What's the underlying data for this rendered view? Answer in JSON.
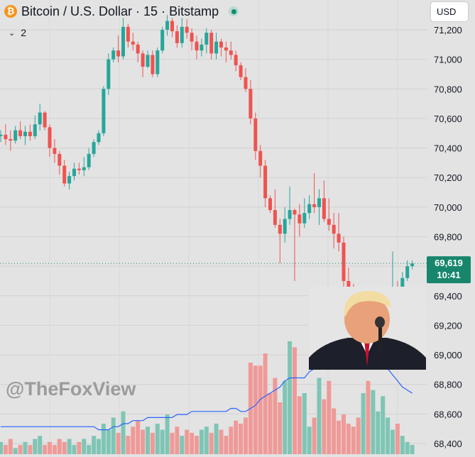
{
  "header": {
    "coin_symbol": "₿",
    "title": "Bitcoin / U.S. Dollar · 15 · Bitstamp",
    "indicator_toggle_icon": "chevron-down-icon",
    "indicator_count": "2",
    "currency": "USD"
  },
  "watermark": "@TheFoxView",
  "colors": {
    "background": "#e3e3e3",
    "up": "#26a69a",
    "down": "#ef5350",
    "volume_up": "#7fc5b5",
    "volume_down": "#ef9a98",
    "volume_ma": "#2962ff",
    "price_label": "#17866d"
  },
  "chart_data": {
    "type": "candlestick",
    "symbol": "Bitcoin / U.S. Dollar",
    "interval": "15",
    "exchange": "Bitstamp",
    "y_axis": {
      "range": [
        68300,
        71300
      ],
      "ticks": [
        "71,200",
        "71,000",
        "70,800",
        "70,600",
        "70,400",
        "70,200",
        "70,000",
        "69,800",
        "69,600",
        "69,400",
        "69,200",
        "69,000",
        "68,800",
        "68,600",
        "68,400"
      ],
      "tick_values": [
        71200,
        71000,
        70800,
        70600,
        70400,
        70200,
        70000,
        69800,
        69600,
        69400,
        69200,
        69000,
        68800,
        68600,
        68400
      ]
    },
    "current_price": {
      "value": 69619,
      "label": "69,619",
      "countdown": "10:41"
    },
    "candles": [
      [
        70480,
        70520,
        70440,
        70490
      ],
      [
        70490,
        70560,
        70420,
        70460
      ],
      [
        70460,
        70520,
        70380,
        70450
      ],
      [
        70450,
        70550,
        70430,
        70520
      ],
      [
        70520,
        70580,
        70460,
        70480
      ],
      [
        70480,
        70550,
        70420,
        70510
      ],
      [
        70510,
        70560,
        70450,
        70480
      ],
      [
        70480,
        70620,
        70460,
        70560
      ],
      [
        70560,
        70700,
        70520,
        70640
      ],
      [
        70640,
        70650,
        70520,
        70540
      ],
      [
        70540,
        70560,
        70340,
        70400
      ],
      [
        70400,
        70460,
        70300,
        70360
      ],
      [
        70360,
        70380,
        70220,
        70280
      ],
      [
        70280,
        70320,
        70140,
        70160
      ],
      [
        70160,
        70240,
        70120,
        70210
      ],
      [
        70210,
        70300,
        70180,
        70260
      ],
      [
        70260,
        70300,
        70220,
        70250
      ],
      [
        70250,
        70340,
        70210,
        70270
      ],
      [
        70270,
        70400,
        70250,
        70360
      ],
      [
        70360,
        70460,
        70340,
        70440
      ],
      [
        70440,
        70520,
        70420,
        70500
      ],
      [
        70500,
        70820,
        70480,
        70800
      ],
      [
        70800,
        71040,
        70760,
        71000
      ],
      [
        71000,
        71080,
        70980,
        71060
      ],
      [
        71060,
        71160,
        70980,
        71020
      ],
      [
        71020,
        71280,
        71000,
        71220
      ],
      [
        71220,
        71240,
        71080,
        71120
      ],
      [
        71120,
        71180,
        71060,
        71100
      ],
      [
        71100,
        71120,
        70980,
        71040
      ],
      [
        71040,
        71060,
        70880,
        70950
      ],
      [
        70950,
        71060,
        70940,
        71030
      ],
      [
        71030,
        71060,
        70880,
        70900
      ],
      [
        70900,
        71080,
        70880,
        71060
      ],
      [
        71060,
        71220,
        71040,
        71200
      ],
      [
        71200,
        71300,
        71160,
        71260
      ],
      [
        71260,
        71280,
        71150,
        71190
      ],
      [
        71190,
        71230,
        71080,
        71110
      ],
      [
        71110,
        71280,
        71080,
        71220
      ],
      [
        71220,
        71270,
        71140,
        71180
      ],
      [
        71180,
        71210,
        71060,
        71120
      ],
      [
        71120,
        71160,
        71000,
        71060
      ],
      [
        71060,
        71140,
        71020,
        71100
      ],
      [
        71100,
        71210,
        71040,
        71180
      ],
      [
        71180,
        71200,
        71000,
        71040
      ],
      [
        71040,
        71180,
        71000,
        71120
      ],
      [
        71120,
        71140,
        71020,
        71080
      ],
      [
        71080,
        71120,
        70980,
        71060
      ],
      [
        71060,
        71120,
        71000,
        71030
      ],
      [
        71030,
        71060,
        70920,
        70960
      ],
      [
        70960,
        70980,
        70860,
        70880
      ],
      [
        70880,
        70940,
        70780,
        70800
      ],
      [
        70800,
        70860,
        70560,
        70600
      ],
      [
        70600,
        70640,
        70320,
        70380
      ],
      [
        70380,
        70420,
        70200,
        70280
      ],
      [
        70280,
        70320,
        70000,
        70060
      ],
      [
        70060,
        70080,
        69960,
        69980
      ],
      [
        69980,
        70120,
        69860,
        69880
      ],
      [
        69880,
        69920,
        69620,
        69820
      ],
      [
        69820,
        70000,
        69760,
        69920
      ],
      [
        69920,
        70140,
        69880,
        69980
      ],
      [
        69980,
        69990,
        69500,
        69950
      ],
      [
        69950,
        70020,
        69800,
        69890
      ],
      [
        69890,
        70060,
        69860,
        69960
      ],
      [
        69960,
        70080,
        69920,
        70020
      ],
      [
        70020,
        70230,
        69960,
        70000
      ],
      [
        70000,
        70120,
        69880,
        70060
      ],
      [
        70060,
        70180,
        69900,
        69920
      ],
      [
        69920,
        70060,
        69840,
        69880
      ],
      [
        69880,
        69960,
        69720,
        69820
      ],
      [
        69820,
        69960,
        69700,
        69760
      ],
      [
        69760,
        69800,
        69460,
        69500
      ],
      [
        69500,
        69590,
        69400,
        69420
      ],
      [
        69420,
        69480,
        69240,
        69280
      ],
      [
        69280,
        69360,
        69080,
        69160
      ],
      [
        69160,
        69240,
        69040,
        69200
      ],
      [
        69200,
        69240,
        68960,
        69050
      ],
      [
        69050,
        69220,
        68930,
        69180
      ],
      [
        69180,
        69260,
        69120,
        69260
      ],
      [
        69260,
        69320,
        69220,
        69300
      ],
      [
        69300,
        69420,
        69240,
        69400
      ],
      [
        69400,
        69700,
        69340,
        69420
      ],
      [
        69420,
        69500,
        69320,
        69360
      ],
      [
        69360,
        69560,
        69340,
        69520
      ],
      [
        69520,
        69640,
        69500,
        69600
      ],
      [
        69600,
        69640,
        69580,
        69619
      ]
    ],
    "volume": {
      "values": [
        4,
        3,
        5,
        2,
        3,
        4,
        3,
        5,
        6,
        3,
        4,
        3,
        5,
        4,
        5,
        3,
        4,
        5,
        3,
        6,
        5,
        10,
        8,
        12,
        7,
        14,
        6,
        9,
        11,
        8,
        9,
        7,
        10,
        8,
        13,
        7,
        9,
        6,
        8,
        7,
        6,
        8,
        9,
        7,
        10,
        8,
        6,
        9,
        11,
        10,
        12,
        30,
        29,
        29,
        33,
        20,
        25,
        17,
        24,
        37,
        35,
        19,
        20,
        9,
        12,
        25,
        18,
        24,
        15,
        11,
        13,
        10,
        9,
        12,
        20,
        24,
        21,
        14,
        19,
        12,
        8,
        10,
        6,
        4,
        3
      ],
      "ma": [
        9,
        9,
        9,
        9,
        9,
        9,
        9,
        9,
        9,
        9,
        9,
        9,
        9,
        9,
        9,
        9,
        9,
        9,
        9,
        9,
        8,
        8,
        8,
        9,
        9,
        10,
        10,
        11,
        11,
        11,
        12,
        12,
        12,
        12,
        12,
        12,
        13,
        13,
        13,
        14,
        14,
        14,
        14,
        14,
        14,
        14,
        14,
        15,
        15,
        14,
        14,
        15,
        16,
        18,
        19,
        20,
        21,
        22,
        24,
        25,
        25,
        25,
        25,
        27,
        28,
        28,
        28,
        28,
        29,
        29,
        29,
        29,
        29,
        30,
        30,
        31,
        31,
        30,
        29,
        28,
        26,
        24,
        22,
        21,
        20
      ]
    }
  }
}
